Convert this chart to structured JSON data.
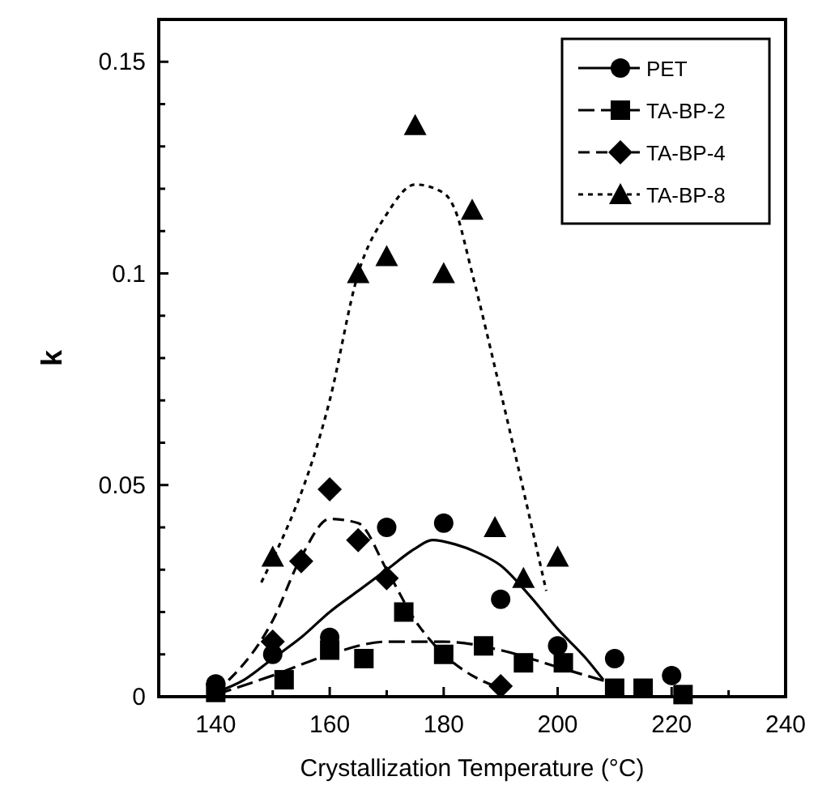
{
  "chart_data": {
    "type": "scatter",
    "xlabel": "Crystallization Temperature  (°C)",
    "ylabel": "k",
    "xlim": [
      130,
      240
    ],
    "ylim": [
      0,
      0.16
    ],
    "xticks": [
      140,
      160,
      180,
      200,
      220,
      240,
      {
        "value": 150,
        "label": null
      },
      {
        "value": 170,
        "label": null
      },
      {
        "value": 190,
        "label": null
      },
      {
        "value": 210,
        "label": null
      },
      {
        "value": 230,
        "label": null
      }
    ],
    "yticks": [
      0,
      0.05,
      0.1,
      0.15,
      {
        "value": 0.01,
        "label": null
      },
      {
        "value": 0.02,
        "label": null
      },
      {
        "value": 0.03,
        "label": null
      },
      {
        "value": 0.04,
        "label": null
      },
      {
        "value": 0.06,
        "label": null
      },
      {
        "value": 0.07,
        "label": null
      },
      {
        "value": 0.08,
        "label": null
      },
      {
        "value": 0.09,
        "label": null
      },
      {
        "value": 0.11,
        "label": null
      },
      {
        "value": 0.12,
        "label": null
      },
      {
        "value": 0.13,
        "label": null
      },
      {
        "value": 0.14,
        "label": null
      }
    ],
    "legend": "top right",
    "grid": false,
    "series": [
      {
        "name": "PET",
        "color": "#000000",
        "marker": "circle",
        "line_style": "solid",
        "x": [
          140,
          150,
          160,
          170,
          180,
          190,
          200,
          210,
          220
        ],
        "values": [
          0.003,
          0.01,
          0.014,
          0.04,
          0.041,
          0.023,
          0.012,
          0.009,
          0.005
        ]
      },
      {
        "name": "TA-BP-2",
        "color": "#000000",
        "marker": "square",
        "line_style": "longdash",
        "x": [
          140,
          152,
          160,
          166,
          173,
          180,
          187,
          194,
          201,
          210,
          215,
          222
        ],
        "values": [
          0.001,
          0.004,
          0.011,
          0.009,
          0.02,
          0.01,
          0.012,
          0.008,
          0.008,
          0.002,
          0.002,
          0.0005
        ]
      },
      {
        "name": "TA-BP-4",
        "color": "#000000",
        "marker": "diamond",
        "line_style": "dashed",
        "x": [
          150,
          155,
          160,
          165,
          170,
          190
        ],
        "values": [
          0.013,
          0.032,
          0.049,
          0.037,
          0.028,
          0.0025
        ]
      },
      {
        "name": "TA-BP-8",
        "color": "#000000",
        "marker": "triangle",
        "line_style": "dotted",
        "x": [
          150,
          165,
          170,
          175,
          180,
          185,
          189,
          194,
          200
        ],
        "values": [
          0.033,
          0.1,
          0.104,
          0.135,
          0.1,
          0.115,
          0.04,
          0.028,
          0.033
        ]
      },
      {
        "type": "line",
        "color": "#000000",
        "marker": "none",
        "line_style": "solid",
        "x": [
          140,
          145,
          150,
          155,
          160,
          165,
          170,
          175,
          178,
          182,
          186,
          190,
          195,
          200,
          205,
          208
        ],
        "values": [
          0.001,
          0.004,
          0.009,
          0.014,
          0.02,
          0.025,
          0.03,
          0.035,
          0.037,
          0.036,
          0.034,
          0.031,
          0.024,
          0.016,
          0.009,
          0.004
        ]
      },
      {
        "type": "line",
        "color": "#000000",
        "marker": "none",
        "line_style": "longdash",
        "x": [
          140,
          150,
          160,
          170,
          180,
          190,
          200,
          210
        ],
        "values": [
          0.0005,
          0.005,
          0.01,
          0.013,
          0.013,
          0.011,
          0.007,
          0.003
        ]
      },
      {
        "type": "line",
        "color": "#000000",
        "marker": "none",
        "line_style": "dashed",
        "x": [
          140,
          150,
          155,
          160,
          165,
          170,
          175,
          180,
          185,
          190
        ],
        "values": [
          0.001,
          0.018,
          0.033,
          0.042,
          0.041,
          0.03,
          0.018,
          0.01,
          0.005,
          0.002
        ]
      },
      {
        "type": "line",
        "color": "#000000",
        "marker": "none",
        "line_style": "dotted",
        "x": [
          148,
          160,
          165,
          170,
          175,
          180,
          182,
          185,
          190,
          198
        ],
        "values": [
          0.027,
          0.07,
          0.1,
          0.114,
          0.121,
          0.119,
          0.115,
          0.1,
          0.072,
          0.025
        ]
      }
    ]
  }
}
